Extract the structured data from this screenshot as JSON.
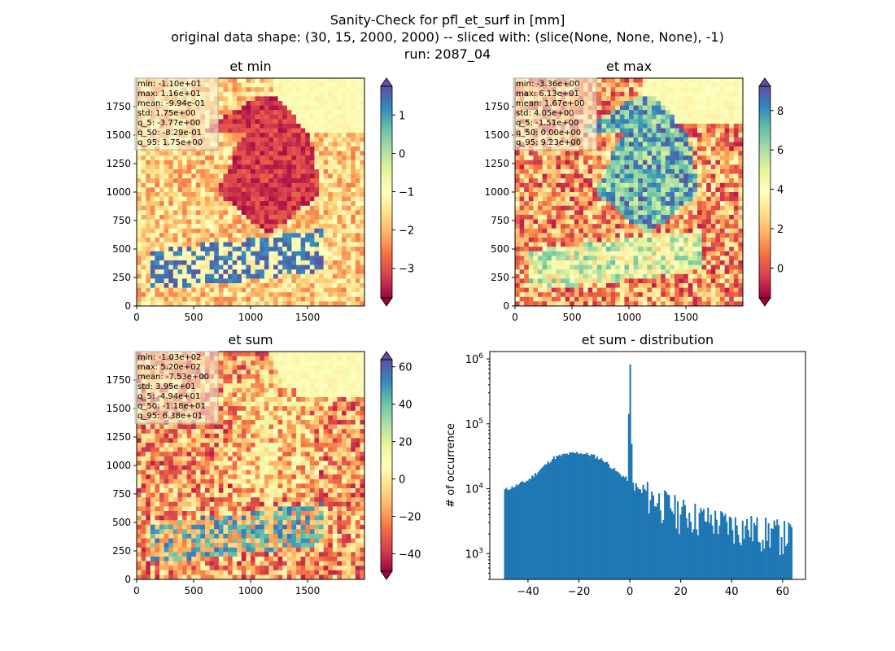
{
  "suptitle": {
    "line1": "Sanity-Check for pfl_et_surf in [mm]",
    "line2": "original data shape: (30, 15, 2000, 2000) -- sliced with: (slice(None, None, None), -1)",
    "line3": "run: 2087_04"
  },
  "colormap": "Spectral",
  "chart_data": [
    {
      "type": "heatmap",
      "title": "et min",
      "xlim": [
        0,
        2000
      ],
      "ylim": [
        0,
        2000
      ],
      "xticks": [
        "0",
        "500",
        "1000",
        "1500"
      ],
      "yticks": [
        "0",
        "250",
        "500",
        "750",
        "1000",
        "1250",
        "1500",
        "1750"
      ],
      "colorbar": {
        "min": -3.77,
        "max": 1.75,
        "ticks": [
          "1",
          "0",
          "−1",
          "−2",
          "−3"
        ],
        "extend": "both"
      },
      "stats": [
        "min: -1.10e+01",
        "max: 1.16e+01",
        "mean: -9.94e-01",
        "std: 1.75e+00",
        "q_5: -3.77e+00",
        "q_50: -8.29e-01",
        "q_95: 1.75e+00"
      ]
    },
    {
      "type": "heatmap",
      "title": "et max",
      "xlim": [
        0,
        2000
      ],
      "ylim": [
        0,
        2000
      ],
      "xticks": [
        "0",
        "500",
        "1000",
        "1500"
      ],
      "yticks": [
        "0",
        "250",
        "500",
        "750",
        "1000",
        "1250",
        "1500",
        "1750"
      ],
      "colorbar": {
        "min": -1.51,
        "max": 9.23,
        "ticks": [
          "8",
          "6",
          "4",
          "2",
          "0"
        ],
        "extend": "both"
      },
      "stats": [
        "min: -3.36e+00",
        "max: 6.13e+01",
        "mean: 1.67e+00",
        "std: 4.05e+00",
        "q_5: -1.51e+00",
        "q_50: 0.00e+00",
        "q_95: 9.23e+00"
      ]
    },
    {
      "type": "heatmap",
      "title": "et sum",
      "xlim": [
        0,
        2000
      ],
      "ylim": [
        0,
        2000
      ],
      "xticks": [
        "0",
        "500",
        "1000",
        "1500"
      ],
      "yticks": [
        "0",
        "250",
        "500",
        "750",
        "1000",
        "1250",
        "1500",
        "1750"
      ],
      "colorbar": {
        "min": -49.4,
        "max": 63.8,
        "ticks": [
          "60",
          "40",
          "20",
          "0",
          "−20",
          "−40"
        ],
        "extend": "both"
      },
      "stats": [
        "min: -1.03e+02",
        "max: 5.20e+02",
        "mean: -7.53e+00",
        "std: 3.95e+01",
        "q_5: -4.94e+01",
        "q_50: -1.18e+01",
        "q_95: 6.38e+01"
      ]
    },
    {
      "type": "bar",
      "title": "et sum - distribution",
      "ylabel": "# of occurrence",
      "yscale": "log",
      "xlim": [
        -55,
        69
      ],
      "ylim": [
        400,
        1300000
      ],
      "xticks": [
        "−40",
        "−20",
        "0",
        "20",
        "40",
        "60"
      ],
      "yticks": [
        "10^3",
        "10^4",
        "10^5",
        "10^6"
      ],
      "bar_color": "#1f77b4",
      "profile": [
        {
          "x": -49.4,
          "y": 9500
        },
        {
          "x": -45,
          "y": 11000
        },
        {
          "x": -40,
          "y": 13500
        },
        {
          "x": -35,
          "y": 20000
        },
        {
          "x": -30,
          "y": 30000
        },
        {
          "x": -25,
          "y": 34000
        },
        {
          "x": -20,
          "y": 36000
        },
        {
          "x": -15,
          "y": 33000
        },
        {
          "x": -10,
          "y": 27000
        },
        {
          "x": -5,
          "y": 18000
        },
        {
          "x": -1,
          "y": 14000
        },
        {
          "x": 0,
          "y": 820000
        },
        {
          "x": 1,
          "y": 12000
        },
        {
          "x": 5,
          "y": 8500
        },
        {
          "x": 10,
          "y": 6500
        },
        {
          "x": 20,
          "y": 4200
        },
        {
          "x": 30,
          "y": 3200
        },
        {
          "x": 40,
          "y": 2600
        },
        {
          "x": 50,
          "y": 2200
        },
        {
          "x": 60,
          "y": 1900
        },
        {
          "x": 63.8,
          "y": 1800
        }
      ]
    }
  ]
}
